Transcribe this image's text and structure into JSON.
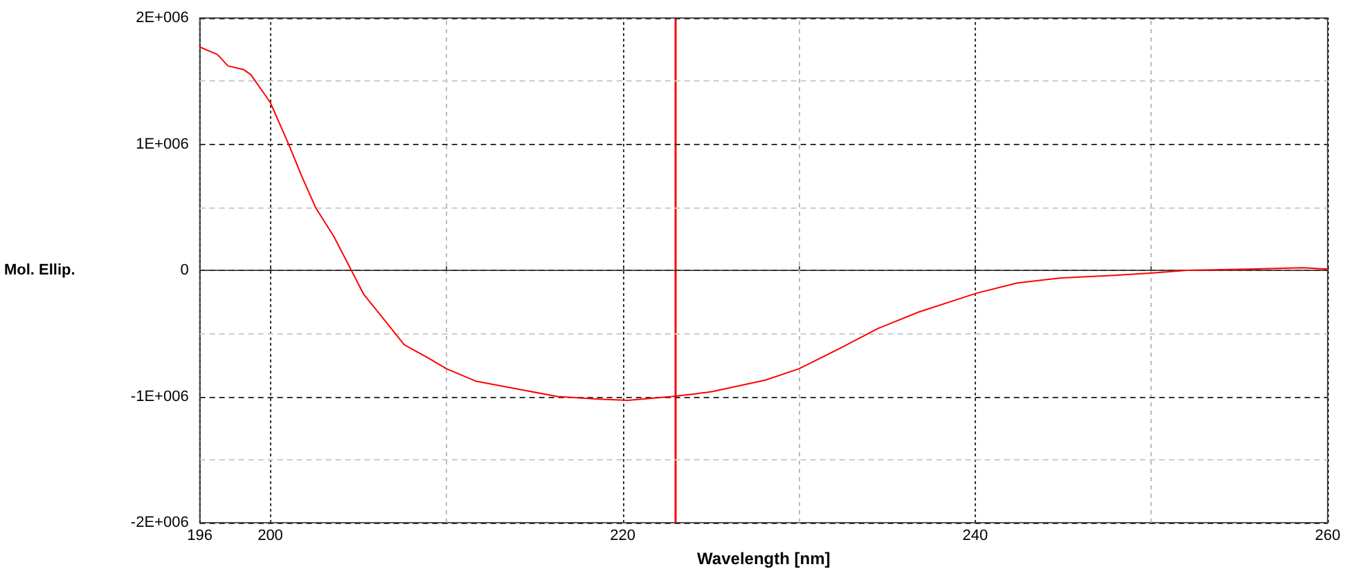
{
  "chart_data": {
    "type": "line",
    "xlabel": "Wavelength [nm]",
    "ylabel": "Mol. Ellip.",
    "x": [
      196,
      197,
      197.6,
      198.5,
      198.9,
      200,
      201.1,
      201.8,
      202.6,
      203.6,
      204.6,
      205.3,
      206.4,
      207.6,
      208.9,
      210,
      211.7,
      214,
      216.3,
      218.6,
      220.3,
      221.1,
      222.8,
      224.1,
      225.1,
      228.1,
      230,
      232.3,
      234.5,
      236.8,
      240.1,
      242.4,
      244.9,
      247.9,
      250.1,
      252,
      255.5,
      258.6,
      260
    ],
    "series": [
      {
        "color": "#ff0000",
        "values": [
          1770000,
          1710000,
          1620000,
          1590000,
          1550000,
          1330000,
          980000,
          740000,
          490000,
          270000,
          0,
          -190000,
          -380000,
          -590000,
          -690000,
          -780000,
          -880000,
          -940000,
          -1000000,
          -1020000,
          -1030000,
          -1020000,
          -1000000,
          -980000,
          -960000,
          -870000,
          -780000,
          -620000,
          -460000,
          -330000,
          -180000,
          -100000,
          -60000,
          -40000,
          -20000,
          0,
          10000,
          20000,
          10000
        ]
      }
    ],
    "xlim": [
      196,
      260
    ],
    "xticks": [
      196,
      200,
      {
        "value": 210,
        "label": null
      },
      220,
      {
        "value": 230,
        "label": null
      },
      240,
      {
        "value": 250,
        "label": null
      },
      260
    ],
    "ylim": [
      -2000000,
      2000000
    ],
    "yticks": [
      {
        "value": -2000000,
        "label": "-2E+006"
      },
      {
        "value": -1500000,
        "label": null
      },
      {
        "value": -1000000,
        "label": "-1E+006"
      },
      {
        "value": -500000,
        "label": null
      },
      0,
      {
        "value": 500000,
        "label": null
      },
      {
        "value": 1000000,
        "label": "1E+006"
      },
      {
        "value": 1500000,
        "label": null
      },
      {
        "value": 2000000,
        "label": "2E+006"
      }
    ],
    "ref_lines": [
      {
        "axis": "x",
        "value": 223,
        "color": "#ff0000",
        "line_style": "solid"
      }
    ],
    "grid": true,
    "marker": "none",
    "line_style": "solid"
  }
}
